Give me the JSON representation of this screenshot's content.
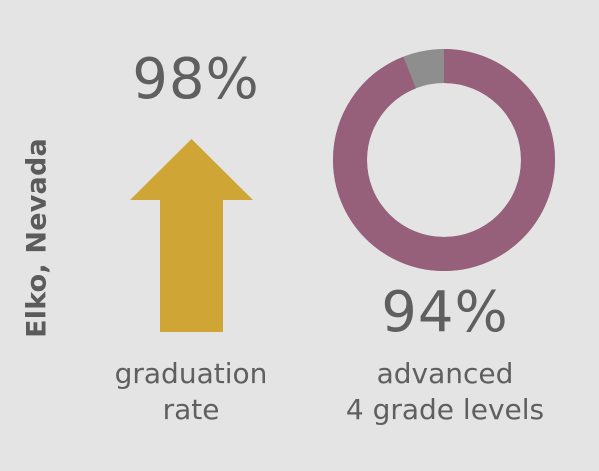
{
  "location_label": "Elko, Nevada",
  "chart_data": [
    {
      "type": "bar",
      "name": "graduation-rate-arrow",
      "value_percent": 98,
      "value_label": "98%",
      "caption_lines": [
        "graduation",
        "rate"
      ],
      "color": "#cfa535"
    },
    {
      "type": "pie",
      "name": "advanced-grade-levels-donut",
      "value_percent": 94,
      "value_label": "94%",
      "caption_lines": [
        "advanced",
        "4 grade levels"
      ],
      "colors": {
        "value": "#965f7a",
        "remainder": "#8e8e8e"
      }
    }
  ]
}
